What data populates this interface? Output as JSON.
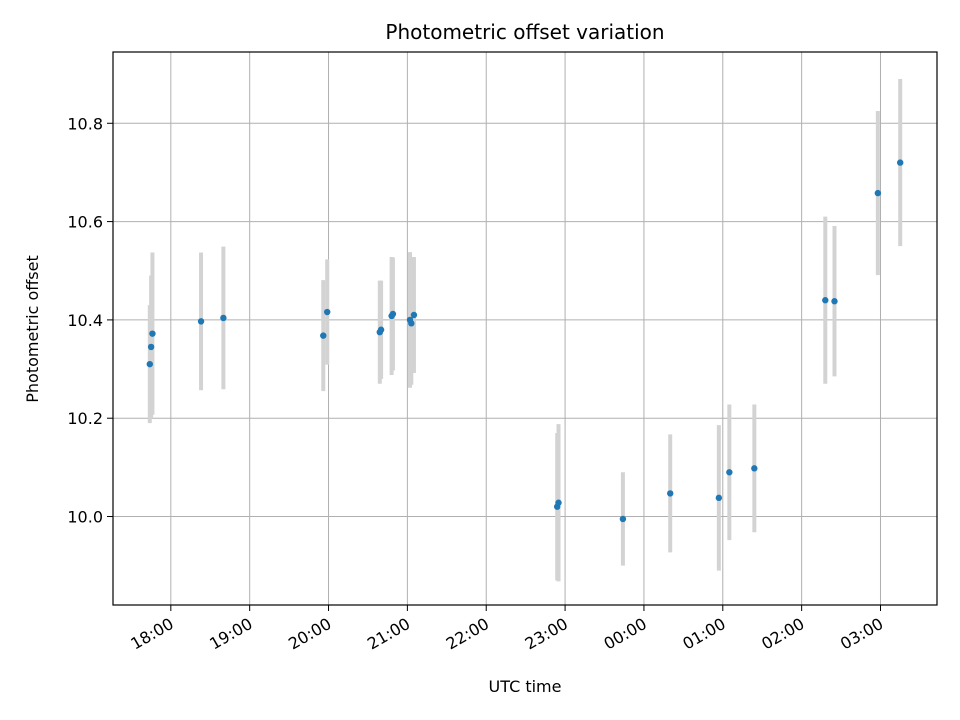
{
  "chart_data": {
    "type": "scatter",
    "title": "Photometric offset variation",
    "xlabel": "UTC time",
    "ylabel": "Photometric offset",
    "grid": true,
    "x_ticks": [
      "18:00",
      "19:00",
      "20:00",
      "21:00",
      "22:00",
      "23:00",
      "00:00",
      "01:00",
      "02:00",
      "03:00"
    ],
    "y_ticks": [
      "10.0",
      "10.2",
      "10.4",
      "10.6",
      "10.8"
    ],
    "ylim": [
      9.82,
      10.945
    ],
    "xlim": [
      "17:16",
      "03:43"
    ],
    "marker_color": "#1f77b4",
    "errorbar_color": "#d3d3d3",
    "points": [
      {
        "time": "17:44",
        "y": 10.31,
        "err": 0.12
      },
      {
        "time": "17:45",
        "y": 10.345,
        "err": 0.145
      },
      {
        "time": "17:46",
        "y": 10.372,
        "err": 0.165
      },
      {
        "time": "18:23",
        "y": 10.397,
        "err": 0.14
      },
      {
        "time": "18:40",
        "y": 10.404,
        "err": 0.145
      },
      {
        "time": "19:56",
        "y": 10.368,
        "err": 0.113
      },
      {
        "time": "19:59",
        "y": 10.416,
        "err": 0.107
      },
      {
        "time": "20:39",
        "y": 10.375,
        "err": 0.105
      },
      {
        "time": "20:40",
        "y": 10.38,
        "err": 0.1
      },
      {
        "time": "20:48",
        "y": 10.408,
        "err": 0.12
      },
      {
        "time": "20:49",
        "y": 10.412,
        "err": 0.115
      },
      {
        "time": "21:02",
        "y": 10.4,
        "err": 0.138
      },
      {
        "time": "21:03",
        "y": 10.393,
        "err": 0.125
      },
      {
        "time": "21:05",
        "y": 10.41,
        "err": 0.118
      },
      {
        "time": "22:54",
        "y": 10.02,
        "err": 0.15
      },
      {
        "time": "22:55",
        "y": 10.028,
        "err": 0.16
      },
      {
        "time": "23:44",
        "y": 9.995,
        "err": 0.095
      },
      {
        "time": "00:20",
        "y": 10.047,
        "err": 0.12
      },
      {
        "time": "00:57",
        "y": 10.038,
        "err": 0.148
      },
      {
        "time": "01:05",
        "y": 10.09,
        "err": 0.138
      },
      {
        "time": "01:24",
        "y": 10.098,
        "err": 0.13
      },
      {
        "time": "02:18",
        "y": 10.44,
        "err": 0.17
      },
      {
        "time": "02:25",
        "y": 10.438,
        "err": 0.153
      },
      {
        "time": "02:58",
        "y": 10.658,
        "err": 0.167
      },
      {
        "time": "03:15",
        "y": 10.72,
        "err": 0.17
      }
    ]
  }
}
